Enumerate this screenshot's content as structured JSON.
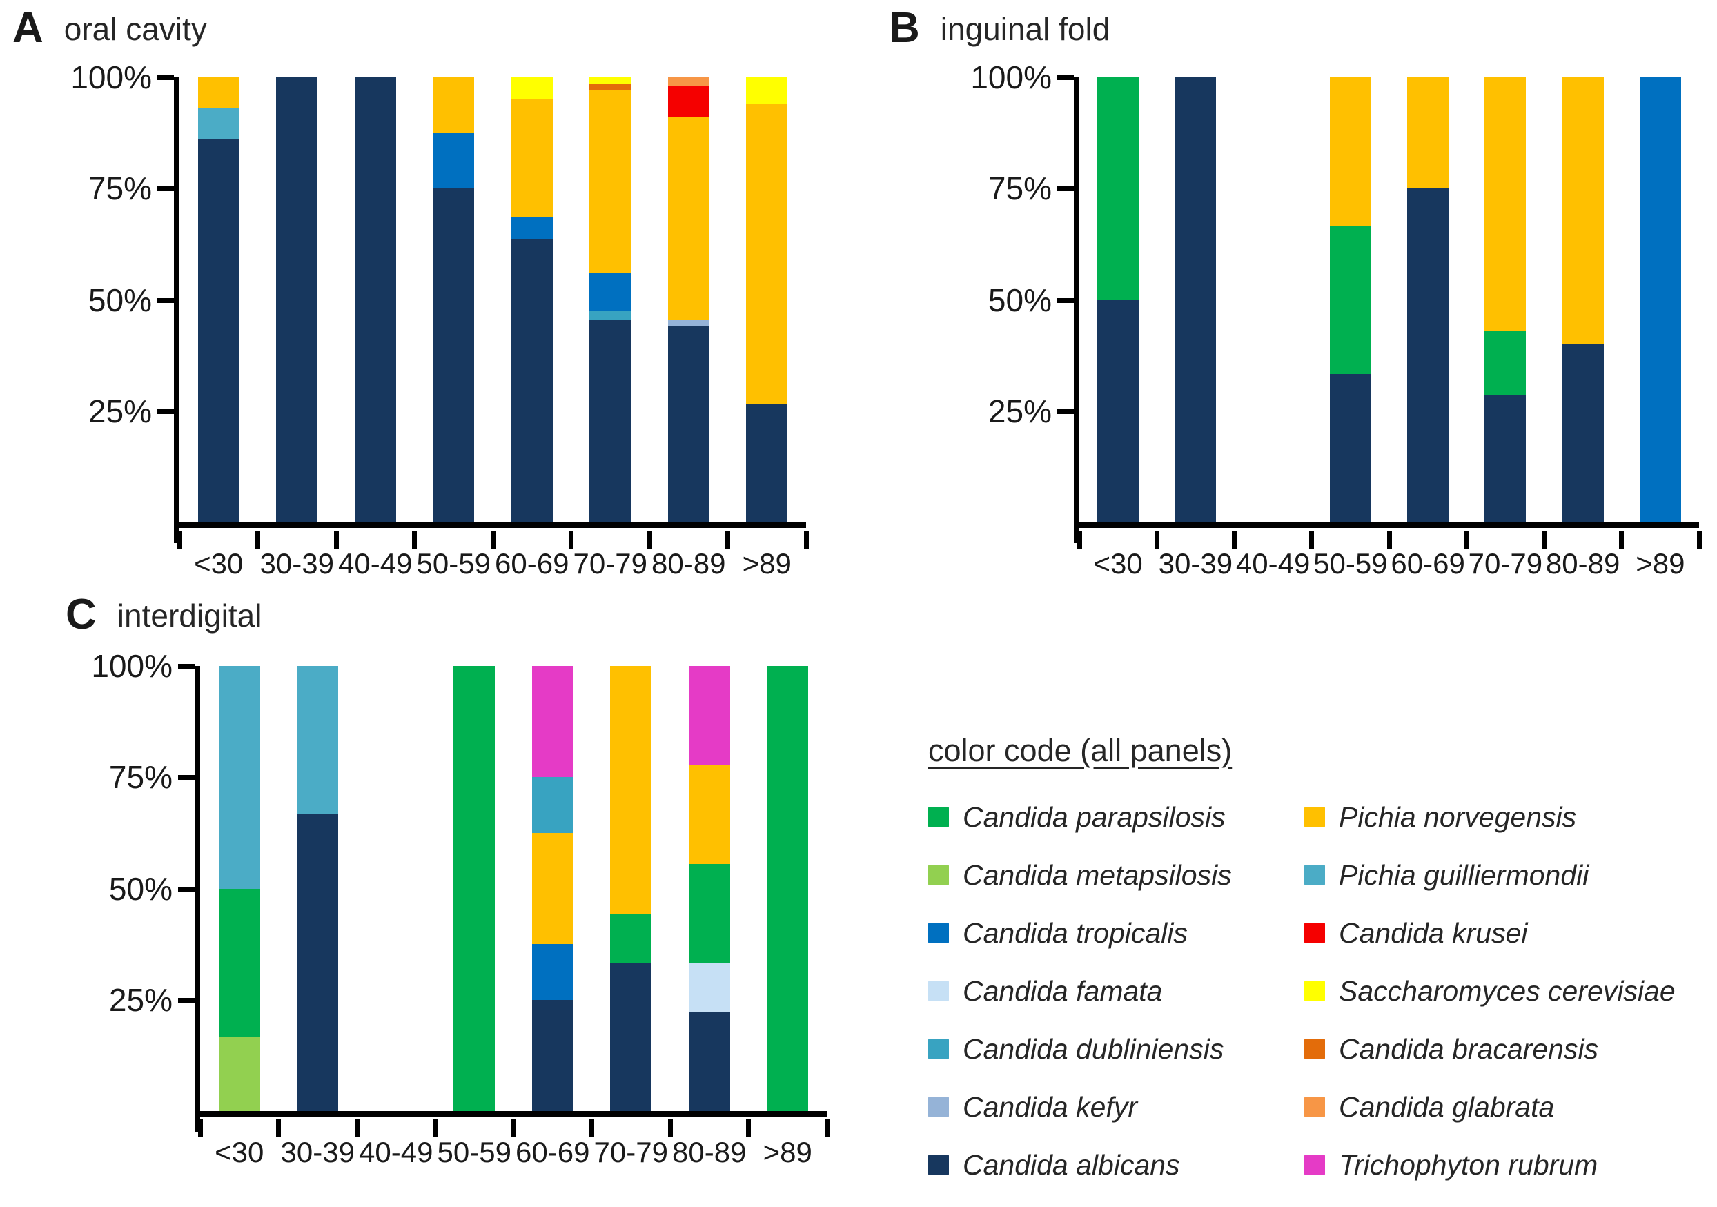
{
  "figure": {
    "panels": [
      {
        "letter": "A",
        "title": "oral cavity"
      },
      {
        "letter": "B",
        "title": "inguinal fold"
      },
      {
        "letter": "C",
        "title": "interdigital"
      }
    ]
  },
  "legend": {
    "title": "color code (all panels)",
    "columns": [
      [
        "Candida parapsilosis",
        "Candida metapsilosis",
        "Candida tropicalis",
        "Candida famata",
        "Candida dubliniensis",
        "Candida kefyr",
        "Candida albicans"
      ],
      [
        "Pichia norvegensis",
        "Pichia guilliermondii",
        "Candida krusei",
        "Saccharomyces cerevisiae",
        "Candida bracarensis",
        "Candida glabrata",
        "Trichophyton rubrum"
      ]
    ]
  },
  "colors": {
    "Candida parapsilosis": "#00B050",
    "Candida metapsilosis": "#92D050",
    "Candida tropicalis": "#0070C0",
    "Candida famata": "#C6E0F5",
    "Candida dubliniensis": "#38A3C1",
    "Candida kefyr": "#95B3D7",
    "Candida albicans": "#17375E",
    "Pichia norvegensis": "#FFC000",
    "Pichia guilliermondii": "#4BACC6",
    "Candida krusei": "#F50000",
    "Saccharomyces cerevisiae": "#FFFF00",
    "Candida bracarensis": "#E36C0A",
    "Candida glabrata": "#F79646",
    "Trichophyton rubrum": "#E53BC6",
    "axis": "#000000"
  },
  "chart_data": [
    {
      "type": "bar",
      "stacked": true,
      "panel": "A",
      "title": "oral cavity",
      "ylim": [
        0,
        100
      ],
      "y_ticks": [
        {
          "label": "100%",
          "value": 100
        },
        {
          "label": "75%",
          "value": 75
        },
        {
          "label": "50%",
          "value": 50
        },
        {
          "label": "25%",
          "value": 25
        }
      ],
      "categories": [
        "<30",
        "30-39",
        "40-49",
        "50-59",
        "60-69",
        "70-79",
        "80-89",
        ">89"
      ],
      "bars": [
        {
          "category": "<30",
          "segments": [
            {
              "species": "Candida albicans",
              "value": 86
            },
            {
              "species": "Pichia guilliermondii",
              "value": 7
            },
            {
              "species": "Pichia norvegensis",
              "value": 7
            }
          ]
        },
        {
          "category": "30-39",
          "segments": [
            {
              "species": "Candida albicans",
              "value": 100
            }
          ]
        },
        {
          "category": "40-49",
          "segments": [
            {
              "species": "Candida albicans",
              "value": 100
            }
          ]
        },
        {
          "category": "50-59",
          "segments": [
            {
              "species": "Candida albicans",
              "value": 75
            },
            {
              "species": "Candida tropicalis",
              "value": 12.5
            },
            {
              "species": "Pichia norvegensis",
              "value": 12.5
            }
          ]
        },
        {
          "category": "60-69",
          "segments": [
            {
              "species": "Candida albicans",
              "value": 63.5
            },
            {
              "species": "Candida tropicalis",
              "value": 5
            },
            {
              "species": "Pichia norvegensis",
              "value": 26.5
            },
            {
              "species": "Saccharomyces cerevisiae",
              "value": 5
            }
          ]
        },
        {
          "category": "70-79",
          "segments": [
            {
              "species": "Candida albicans",
              "value": 45.5
            },
            {
              "species": "Candida dubliniensis",
              "value": 2
            },
            {
              "species": "Candida tropicalis",
              "value": 8.5
            },
            {
              "species": "Pichia norvegensis",
              "value": 41
            },
            {
              "species": "Candida bracarensis",
              "value": 1.5
            },
            {
              "species": "Saccharomyces cerevisiae",
              "value": 1.5
            }
          ]
        },
        {
          "category": "80-89",
          "segments": [
            {
              "species": "Candida albicans",
              "value": 44
            },
            {
              "species": "Candida kefyr",
              "value": 1.5
            },
            {
              "species": "Pichia norvegensis",
              "value": 45.5
            },
            {
              "species": "Candida krusei",
              "value": 7
            },
            {
              "species": "Candida glabrata",
              "value": 2
            }
          ]
        },
        {
          "category": ">89",
          "segments": [
            {
              "species": "Candida albicans",
              "value": 26.5
            },
            {
              "species": "Pichia norvegensis",
              "value": 67.5
            },
            {
              "species": "Saccharomyces cerevisiae",
              "value": 6
            }
          ]
        }
      ]
    },
    {
      "type": "bar",
      "stacked": true,
      "panel": "B",
      "title": "inguinal fold",
      "ylim": [
        0,
        100
      ],
      "y_ticks": [
        {
          "label": "100%",
          "value": 100
        },
        {
          "label": "75%",
          "value": 75
        },
        {
          "label": "50%",
          "value": 50
        },
        {
          "label": "25%",
          "value": 25
        }
      ],
      "categories": [
        "<30",
        "30-39",
        "40-49",
        "50-59",
        "60-69",
        "70-79",
        "80-89",
        ">89"
      ],
      "bars": [
        {
          "category": "<30",
          "segments": [
            {
              "species": "Candida albicans",
              "value": 50
            },
            {
              "species": "Candida parapsilosis",
              "value": 50
            }
          ]
        },
        {
          "category": "30-39",
          "segments": [
            {
              "species": "Candida albicans",
              "value": 100
            }
          ]
        },
        {
          "category": "40-49",
          "segments": []
        },
        {
          "category": "50-59",
          "segments": [
            {
              "species": "Candida albicans",
              "value": 33.3
            },
            {
              "species": "Candida parapsilosis",
              "value": 33.4
            },
            {
              "species": "Pichia norvegensis",
              "value": 33.3
            }
          ]
        },
        {
          "category": "60-69",
          "segments": [
            {
              "species": "Candida albicans",
              "value": 75
            },
            {
              "species": "Pichia norvegensis",
              "value": 25
            }
          ]
        },
        {
          "category": "70-79",
          "segments": [
            {
              "species": "Candida albicans",
              "value": 28.6
            },
            {
              "species": "Candida parapsilosis",
              "value": 14.3
            },
            {
              "species": "Pichia norvegensis",
              "value": 57.1
            }
          ]
        },
        {
          "category": "80-89",
          "segments": [
            {
              "species": "Candida albicans",
              "value": 40
            },
            {
              "species": "Pichia norvegensis",
              "value": 60
            }
          ]
        },
        {
          "category": ">89",
          "segments": [
            {
              "species": "Candida tropicalis",
              "value": 100
            }
          ]
        }
      ]
    },
    {
      "type": "bar",
      "stacked": true,
      "panel": "C",
      "title": "interdigital",
      "ylim": [
        0,
        100
      ],
      "y_ticks": [
        {
          "label": "100%",
          "value": 100
        },
        {
          "label": "75%",
          "value": 75
        },
        {
          "label": "50%",
          "value": 50
        },
        {
          "label": "25%",
          "value": 25
        }
      ],
      "categories": [
        "<30",
        "30-39",
        "40-49",
        "50-59",
        "60-69",
        "70-79",
        "80-89",
        ">89"
      ],
      "bars": [
        {
          "category": "<30",
          "segments": [
            {
              "species": "Candida metapsilosis",
              "value": 16.7
            },
            {
              "species": "Candida parapsilosis",
              "value": 33.3
            },
            {
              "species": "Pichia guilliermondii",
              "value": 50
            }
          ]
        },
        {
          "category": "30-39",
          "segments": [
            {
              "species": "Candida albicans",
              "value": 66.7
            },
            {
              "species": "Pichia guilliermondii",
              "value": 33.3
            }
          ]
        },
        {
          "category": "40-49",
          "segments": []
        },
        {
          "category": "50-59",
          "segments": [
            {
              "species": "Candida parapsilosis",
              "value": 100
            }
          ]
        },
        {
          "category": "60-69",
          "segments": [
            {
              "species": "Candida albicans",
              "value": 25
            },
            {
              "species": "Candida tropicalis",
              "value": 12.5
            },
            {
              "species": "Pichia norvegensis",
              "value": 25
            },
            {
              "species": "Candida dubliniensis",
              "value": 12.5
            },
            {
              "species": "Trichophyton rubrum",
              "value": 25
            }
          ]
        },
        {
          "category": "70-79",
          "segments": [
            {
              "species": "Candida albicans",
              "value": 33.3
            },
            {
              "species": "Candida parapsilosis",
              "value": 11.1
            },
            {
              "species": "Pichia norvegensis",
              "value": 55.6
            }
          ]
        },
        {
          "category": "80-89",
          "segments": [
            {
              "species": "Candida albicans",
              "value": 22.2
            },
            {
              "species": "Candida famata",
              "value": 11.1
            },
            {
              "species": "Candida parapsilosis",
              "value": 22.2
            },
            {
              "species": "Pichia norvegensis",
              "value": 22.3
            },
            {
              "species": "Trichophyton rubrum",
              "value": 22.2
            }
          ]
        },
        {
          "category": ">89",
          "segments": [
            {
              "species": "Candida parapsilosis",
              "value": 100
            }
          ]
        }
      ]
    }
  ]
}
